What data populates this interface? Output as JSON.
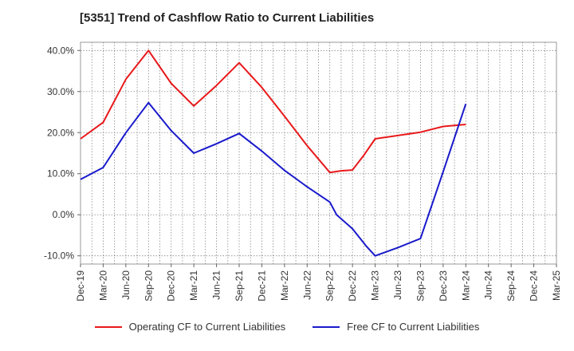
{
  "chart_data": {
    "type": "line",
    "title": "[5351]  Trend of Cashflow Ratio to Current Liabilities",
    "categories": [
      "Dec-19",
      "Mar-20",
      "Jun-20",
      "Sep-20",
      "Dec-20",
      "Mar-21",
      "Jun-21",
      "Sep-21",
      "Dec-21",
      "Mar-22",
      "Jun-22",
      "Sep-22",
      "Dec-22",
      "Mar-23",
      "Jun-23",
      "Sep-23",
      "Dec-23",
      "Mar-24",
      "Jun-24",
      "Sep-24",
      "Dec-24",
      "Mar-25"
    ],
    "y_ticks": [
      "40.0%",
      "30.0%",
      "20.0%",
      "10.0%",
      "0.0%",
      "-10.0%"
    ],
    "y_tick_values": [
      40,
      30,
      20,
      10,
      0,
      -10
    ],
    "ylim": [
      -12,
      42
    ],
    "grid": true,
    "legend_position": "bottom",
    "series": [
      {
        "name": "Operating CF to Current Liabilities",
        "color": "#e8191b",
        "points": [
          [
            0,
            18.5
          ],
          [
            1,
            22.5
          ],
          [
            2,
            33
          ],
          [
            3,
            40
          ],
          [
            4,
            32
          ],
          [
            5,
            26.5
          ],
          [
            6,
            31.5
          ],
          [
            7,
            37
          ],
          [
            8,
            31
          ],
          [
            9,
            24
          ],
          [
            10,
            16.8
          ],
          [
            11,
            10.3
          ],
          [
            11.5,
            10.7
          ],
          [
            12,
            10.9
          ],
          [
            12.5,
            14.5
          ],
          [
            13,
            18.5
          ],
          [
            14,
            19.3
          ],
          [
            15,
            20.1
          ],
          [
            16,
            21.5
          ],
          [
            17,
            22
          ]
        ]
      },
      {
        "name": "Free CF to Current Liabilities",
        "color": "#1a1acc",
        "points": [
          [
            0,
            8.6
          ],
          [
            1,
            11.5
          ],
          [
            2,
            20
          ],
          [
            3,
            27.3
          ],
          [
            4,
            20.5
          ],
          [
            5,
            15
          ],
          [
            6,
            17.3
          ],
          [
            7,
            19.8
          ],
          [
            8,
            15.5
          ],
          [
            9,
            10.8
          ],
          [
            10,
            6.8
          ],
          [
            11,
            3.1
          ],
          [
            11.3,
            0
          ],
          [
            12,
            -3.4
          ],
          [
            12.6,
            -7.6
          ],
          [
            13,
            -10
          ],
          [
            14,
            -8
          ],
          [
            15,
            -5.8
          ],
          [
            16,
            10.5
          ],
          [
            17,
            27
          ]
        ]
      }
    ]
  }
}
